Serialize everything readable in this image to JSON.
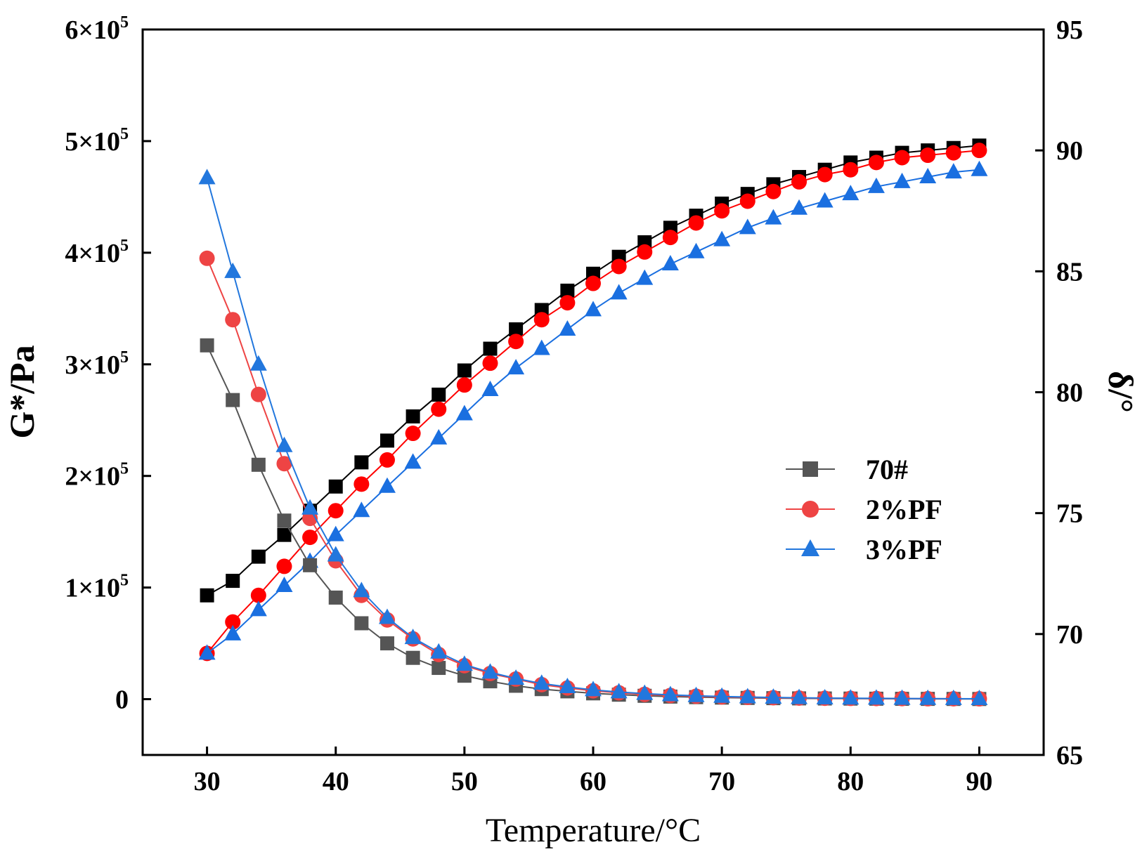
{
  "chart_data": {
    "type": "line",
    "xlabel": "Temperature/°C",
    "ylabel_left": "G*/Pa",
    "ylabel_right": "δ/°",
    "x_ticks": [
      30,
      40,
      50,
      60,
      70,
      80,
      90
    ],
    "xlim": [
      25,
      95
    ],
    "ylim_left": [
      -50000,
      600000
    ],
    "ylim_right": [
      65,
      95
    ],
    "left_ticks": [
      {
        "value": 0,
        "base": "0",
        "exp": ""
      },
      {
        "value": 100000,
        "base": "1×10",
        "exp": "5"
      },
      {
        "value": 200000,
        "base": "2×10",
        "exp": "5"
      },
      {
        "value": 300000,
        "base": "3×10",
        "exp": "5"
      },
      {
        "value": 400000,
        "base": "4×10",
        "exp": "5"
      },
      {
        "value": 500000,
        "base": "5×10",
        "exp": "5"
      },
      {
        "value": 600000,
        "base": "6×10",
        "exp": "5"
      }
    ],
    "right_ticks": [
      65,
      70,
      75,
      80,
      85,
      90,
      95
    ],
    "x": [
      30,
      32,
      34,
      36,
      38,
      40,
      42,
      44,
      46,
      48,
      50,
      52,
      54,
      56,
      58,
      60,
      62,
      64,
      66,
      68,
      70,
      72,
      74,
      76,
      78,
      80,
      82,
      84,
      86,
      88,
      90
    ],
    "legend_position": "middle-right",
    "series": [
      {
        "name": "70#",
        "quantity": "G*",
        "axis": "left",
        "marker": "square",
        "color": "#555555",
        "values": [
          317000,
          268000,
          210000,
          160000,
          120000,
          91000,
          68000,
          50000,
          37000,
          28000,
          21000,
          16000,
          12000,
          9000,
          7000,
          5200,
          4000,
          3000,
          2300,
          1800,
          1400,
          1100,
          900,
          700,
          600,
          500,
          400,
          300,
          250,
          200,
          150
        ]
      },
      {
        "name": "2%PF",
        "quantity": "G*",
        "axis": "left",
        "marker": "circle",
        "color": "#ee4444",
        "values": [
          395000,
          340000,
          273000,
          211000,
          162000,
          124000,
          93000,
          71000,
          54000,
          40000,
          30000,
          23000,
          18000,
          13000,
          10000,
          7500,
          5700,
          4300,
          3300,
          2600,
          2000,
          1600,
          1300,
          1000,
          800,
          700,
          600,
          500,
          400,
          350,
          300
        ]
      },
      {
        "name": "3%PF",
        "quantity": "G*",
        "axis": "left",
        "marker": "triangle",
        "color": "#2277dd",
        "values": [
          467000,
          383000,
          300000,
          227000,
          171000,
          129000,
          97000,
          73000,
          55000,
          42000,
          31000,
          24000,
          18500,
          14000,
          11000,
          8300,
          6400,
          5000,
          3800,
          3000,
          2400,
          1900,
          1500,
          1200,
          1000,
          800,
          700,
          600,
          500,
          400,
          350
        ]
      },
      {
        "name": "70#",
        "quantity": "δ",
        "axis": "right",
        "marker": "square",
        "color": "#000000",
        "values": [
          71.6,
          72.2,
          73.2,
          74.1,
          75.1,
          76.1,
          77.1,
          78.0,
          79.0,
          79.9,
          80.9,
          81.8,
          82.6,
          83.4,
          84.2,
          84.9,
          85.6,
          86.2,
          86.8,
          87.3,
          87.8,
          88.2,
          88.6,
          88.9,
          89.2,
          89.5,
          89.7,
          89.9,
          90.0,
          90.1,
          90.2
        ]
      },
      {
        "name": "2%PF",
        "quantity": "δ",
        "axis": "right",
        "marker": "circle",
        "color": "#ff0000",
        "values": [
          69.2,
          70.5,
          71.6,
          72.8,
          74.0,
          75.1,
          76.2,
          77.2,
          78.3,
          79.3,
          80.3,
          81.2,
          82.1,
          83.0,
          83.7,
          84.5,
          85.2,
          85.8,
          86.4,
          87.0,
          87.5,
          87.9,
          88.3,
          88.7,
          89.0,
          89.2,
          89.5,
          89.7,
          89.8,
          89.9,
          90.0
        ]
      },
      {
        "name": "3%PF",
        "quantity": "δ",
        "axis": "right",
        "marker": "triangle",
        "color": "#1a6fe0",
        "values": [
          69.2,
          70.0,
          71.0,
          72.0,
          73.0,
          74.1,
          75.1,
          76.1,
          77.1,
          78.1,
          79.1,
          80.1,
          81.0,
          81.8,
          82.6,
          83.4,
          84.1,
          84.7,
          85.3,
          85.8,
          86.3,
          86.8,
          87.2,
          87.6,
          87.9,
          88.2,
          88.5,
          88.7,
          88.9,
          89.1,
          89.2
        ]
      }
    ],
    "legend": [
      {
        "label": "70#",
        "marker": "square",
        "color": "#555555"
      },
      {
        "label": "2%PF",
        "marker": "circle",
        "color": "#ee4444"
      },
      {
        "label": "3%PF",
        "marker": "triangle",
        "color": "#2277dd"
      }
    ]
  }
}
